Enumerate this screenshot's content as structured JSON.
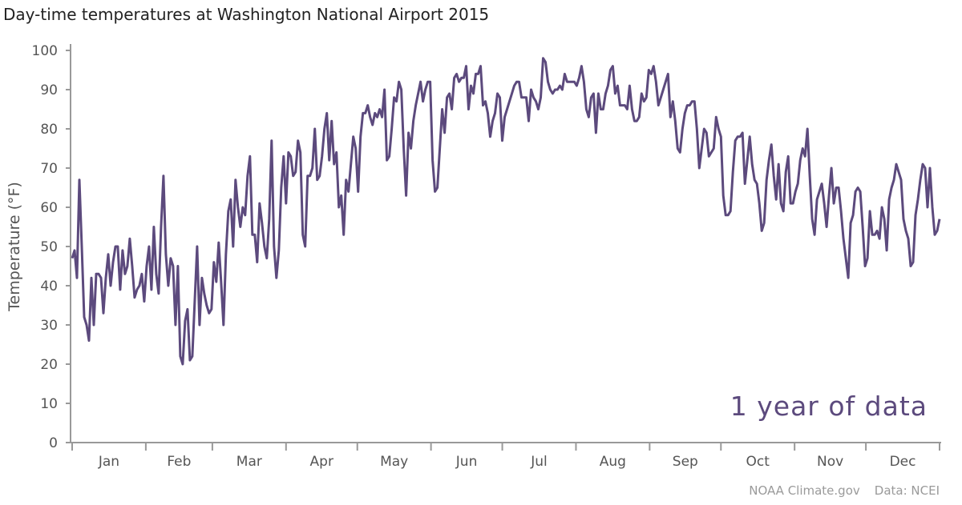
{
  "chart_data": {
    "type": "line",
    "title": "Day-time temperatures at Washington National Airport 2015",
    "ylabel": "Temperature (°F)",
    "xlabel": "",
    "ylim": [
      0,
      100
    ],
    "yticks": [
      0,
      10,
      20,
      30,
      40,
      50,
      60,
      70,
      80,
      90,
      100
    ],
    "xticks": [
      "Jan",
      "Feb",
      "Mar",
      "Apr",
      "May",
      "Jun",
      "Jul",
      "Aug",
      "Sep",
      "Oct",
      "Nov",
      "Dec"
    ],
    "annotation": "1 year of data",
    "grid": false,
    "color": "#5c4a7d",
    "series": [
      {
        "values": [
          47,
          49,
          42,
          67,
          50,
          32,
          30,
          26,
          42,
          30,
          43,
          43,
          42,
          33,
          42,
          48,
          40,
          46,
          50,
          50,
          39,
          49,
          43,
          45,
          52,
          45,
          37,
          39,
          40,
          43,
          36,
          45,
          50,
          39,
          55,
          43,
          38,
          55,
          68,
          48,
          40,
          47,
          45,
          30,
          45,
          22,
          20,
          31,
          34,
          21,
          22,
          36,
          50,
          30,
          42,
          38,
          35,
          33,
          34,
          46,
          41,
          51,
          41,
          30,
          48,
          59,
          62,
          50,
          67,
          60,
          55,
          60,
          58,
          68,
          73,
          53,
          53,
          46,
          61,
          56,
          50,
          47,
          57,
          77,
          50,
          42,
          49,
          65,
          73,
          61,
          74,
          73,
          68,
          69,
          77,
          74,
          53,
          50,
          68,
          68,
          70,
          80,
          67,
          68,
          73,
          80,
          84,
          72,
          82,
          71,
          74,
          60,
          63,
          53,
          67,
          64,
          71,
          78,
          75,
          64,
          78,
          84,
          84,
          86,
          83,
          81,
          84,
          83,
          85,
          83,
          90,
          72,
          73,
          80,
          88,
          87,
          92,
          90,
          75,
          63,
          79,
          75,
          82,
          86,
          89,
          92,
          87,
          90,
          92,
          92,
          72,
          64,
          65,
          75,
          85,
          79,
          88,
          89,
          85,
          93,
          94,
          92,
          93,
          93,
          96,
          85,
          91,
          89,
          94,
          94,
          96,
          86,
          87,
          84,
          78,
          82,
          84,
          89,
          88,
          77,
          83,
          85,
          87,
          89,
          91,
          92,
          92,
          88,
          88,
          88,
          82,
          90,
          88,
          87,
          85,
          88,
          98,
          97,
          92,
          90,
          89,
          90,
          90,
          91,
          90,
          94,
          92,
          92,
          92,
          92,
          91,
          93,
          96,
          92,
          85,
          83,
          88,
          89,
          79,
          89,
          85,
          85,
          89,
          91,
          95,
          96,
          89,
          91,
          86,
          86,
          86,
          85,
          91,
          85,
          82,
          82,
          83,
          89,
          87,
          88,
          95,
          94,
          96,
          92,
          86,
          88,
          90,
          92,
          94,
          83,
          87,
          82,
          75,
          74,
          80,
          84,
          86,
          86,
          87,
          87,
          80,
          70,
          75,
          80,
          79,
          73,
          74,
          75,
          83,
          80,
          78,
          63,
          58,
          58,
          59,
          69,
          77,
          78,
          78,
          79,
          66,
          72,
          78,
          71,
          67,
          66,
          61,
          54,
          56,
          67,
          72,
          76,
          68,
          62,
          71,
          61,
          59,
          69,
          73,
          61,
          61,
          64,
          66,
          72,
          75,
          73,
          80,
          68,
          57,
          53,
          62,
          64,
          66,
          61,
          55,
          63,
          70,
          61,
          65,
          65,
          59,
          52,
          47,
          42,
          56,
          58,
          64,
          65,
          64,
          55,
          45,
          47,
          59,
          53,
          53,
          54,
          52,
          60,
          57,
          49,
          62,
          65,
          67,
          71,
          69,
          67,
          57,
          54,
          52,
          45,
          46,
          58,
          62,
          67,
          71,
          70,
          60,
          70,
          60,
          53,
          54,
          57
        ]
      }
    ]
  },
  "footer": {
    "credit": "NOAA Climate.gov",
    "source": "Data: NCEI"
  }
}
